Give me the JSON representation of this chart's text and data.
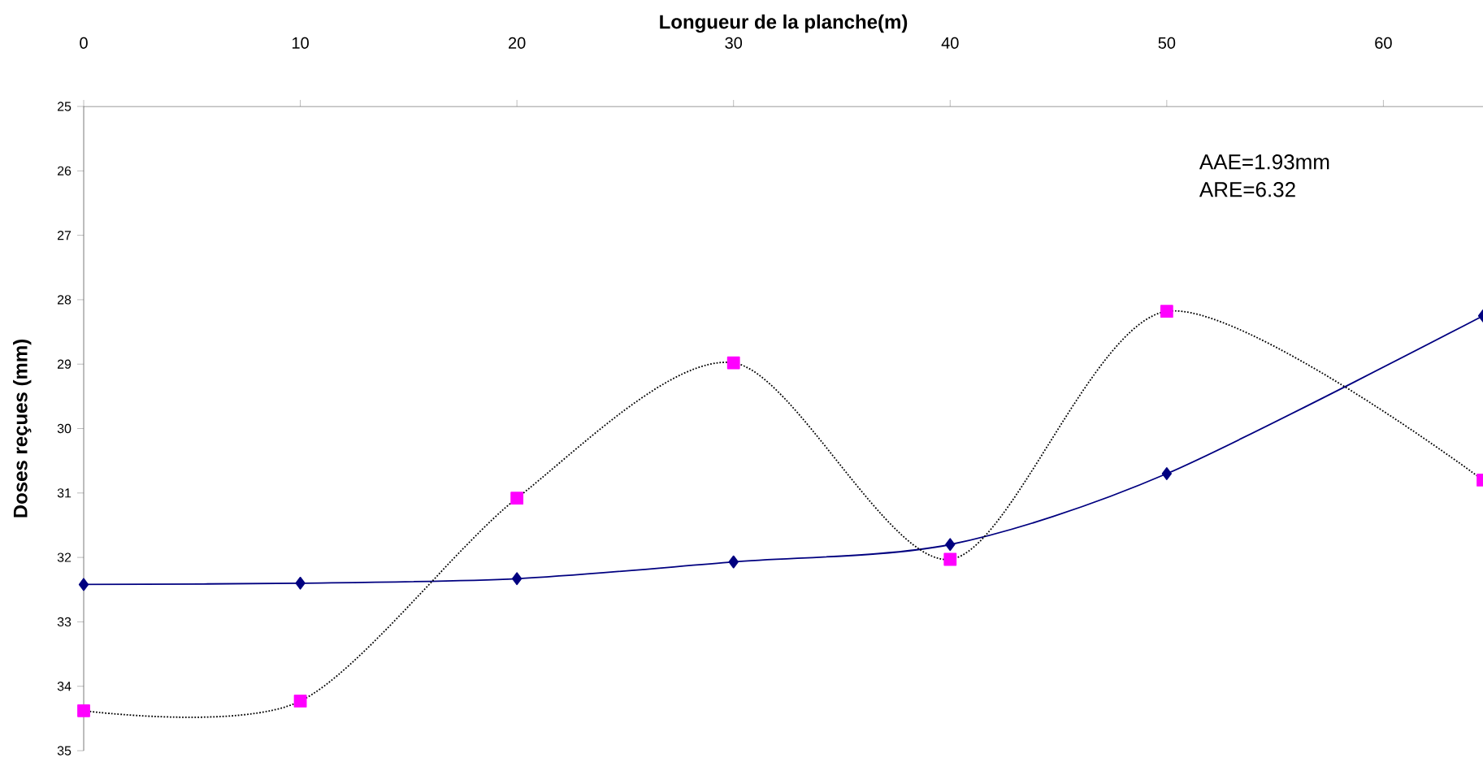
{
  "chart_data": {
    "type": "line",
    "xlabel": "Longueur de la planche(m)",
    "ylabel": "Doses reçues (mm)",
    "xlim": [
      0,
      64.6
    ],
    "xticks": [
      0,
      10,
      20,
      30,
      40,
      50,
      60
    ],
    "ylim": [
      35,
      25
    ],
    "yticks": [
      25,
      26,
      27,
      28,
      29,
      30,
      31,
      32,
      33,
      34,
      35
    ],
    "annotations": [
      "AAE=1.93mm",
      "ARE=6.32"
    ],
    "series": [
      {
        "color": "#000080",
        "marker": "diamond",
        "line_style": "solid",
        "x": [
          0,
          10,
          20,
          30,
          40,
          50,
          64.6
        ],
        "values": [
          32.42,
          32.4,
          32.33,
          32.07,
          31.8,
          30.7,
          28.25
        ]
      },
      {
        "color": "#ff00ff",
        "marker": "square",
        "line_style": "dotted",
        "x": [
          0,
          10,
          20,
          30,
          40,
          50,
          64.6
        ],
        "values": [
          34.38,
          34.23,
          31.08,
          28.98,
          32.03,
          28.18,
          30.8
        ]
      }
    ]
  }
}
